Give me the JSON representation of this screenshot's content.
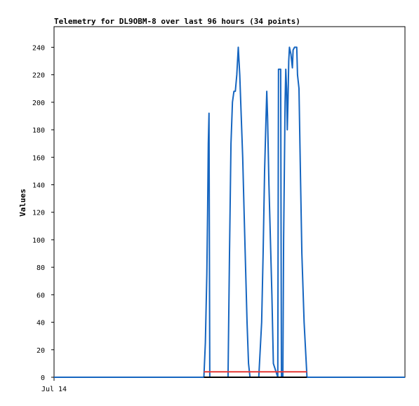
{
  "chart_data": {
    "type": "line",
    "title": "Telemetry for DL9OBM-8 over last 96 hours (34 points)",
    "ylabel": "Values",
    "xlabel": "",
    "x_tick_labels": [
      "Jul 14"
    ],
    "ylim": [
      0,
      255
    ],
    "y_ticks": [
      0,
      20,
      40,
      60,
      80,
      100,
      120,
      140,
      160,
      180,
      200,
      220,
      240
    ],
    "grid": false,
    "series": [
      {
        "color": "#1565c0",
        "x": [
          0,
          41.0,
          41.4,
          41.8,
          42.0,
          42.2,
          42.4,
          42.6,
          43.0,
          47.6,
          48.0,
          48.4,
          48.8,
          49.2,
          49.6,
          50.0,
          50.4,
          50.8,
          51.2,
          51.6,
          52.0,
          52.4,
          52.8,
          53.2,
          53.6,
          54.0,
          54.4,
          56.0,
          56.8,
          57.2,
          57.6,
          58.0,
          58.2,
          58.4,
          58.8,
          59.2,
          59.6,
          60.0,
          61.2,
          61.4,
          62.0,
          62.2,
          62.6,
          62.8,
          63.2,
          63.4,
          63.6,
          63.8,
          64.0,
          64.2,
          64.4,
          64.8,
          65.2,
          65.4,
          65.8,
          66.0,
          66.4,
          66.6,
          67.0,
          67.4,
          67.8,
          68.4,
          69.2,
          96
        ],
        "y": [
          0,
          0,
          25,
          75,
          120,
          170,
          192,
          0,
          0,
          0,
          90,
          170,
          200,
          208,
          208,
          220,
          240,
          220,
          190,
          160,
          120,
          80,
          40,
          10,
          0,
          0,
          0,
          0,
          40,
          90,
          150,
          190,
          208,
          190,
          140,
          100,
          60,
          10,
          0,
          224,
          224,
          0,
          0,
          100,
          200,
          224,
          210,
          180,
          200,
          230,
          240,
          235,
          225,
          238,
          240,
          240,
          240,
          220,
          210,
          150,
          90,
          40,
          0,
          0
        ]
      },
      {
        "color": "#e53935",
        "x": [
          41,
          69.2
        ],
        "y": [
          4,
          4
        ]
      },
      {
        "color": "#000000",
        "x": [
          41,
          69.2
        ],
        "y": [
          0,
          0
        ]
      }
    ],
    "xlim": [
      0,
      96
    ]
  }
}
